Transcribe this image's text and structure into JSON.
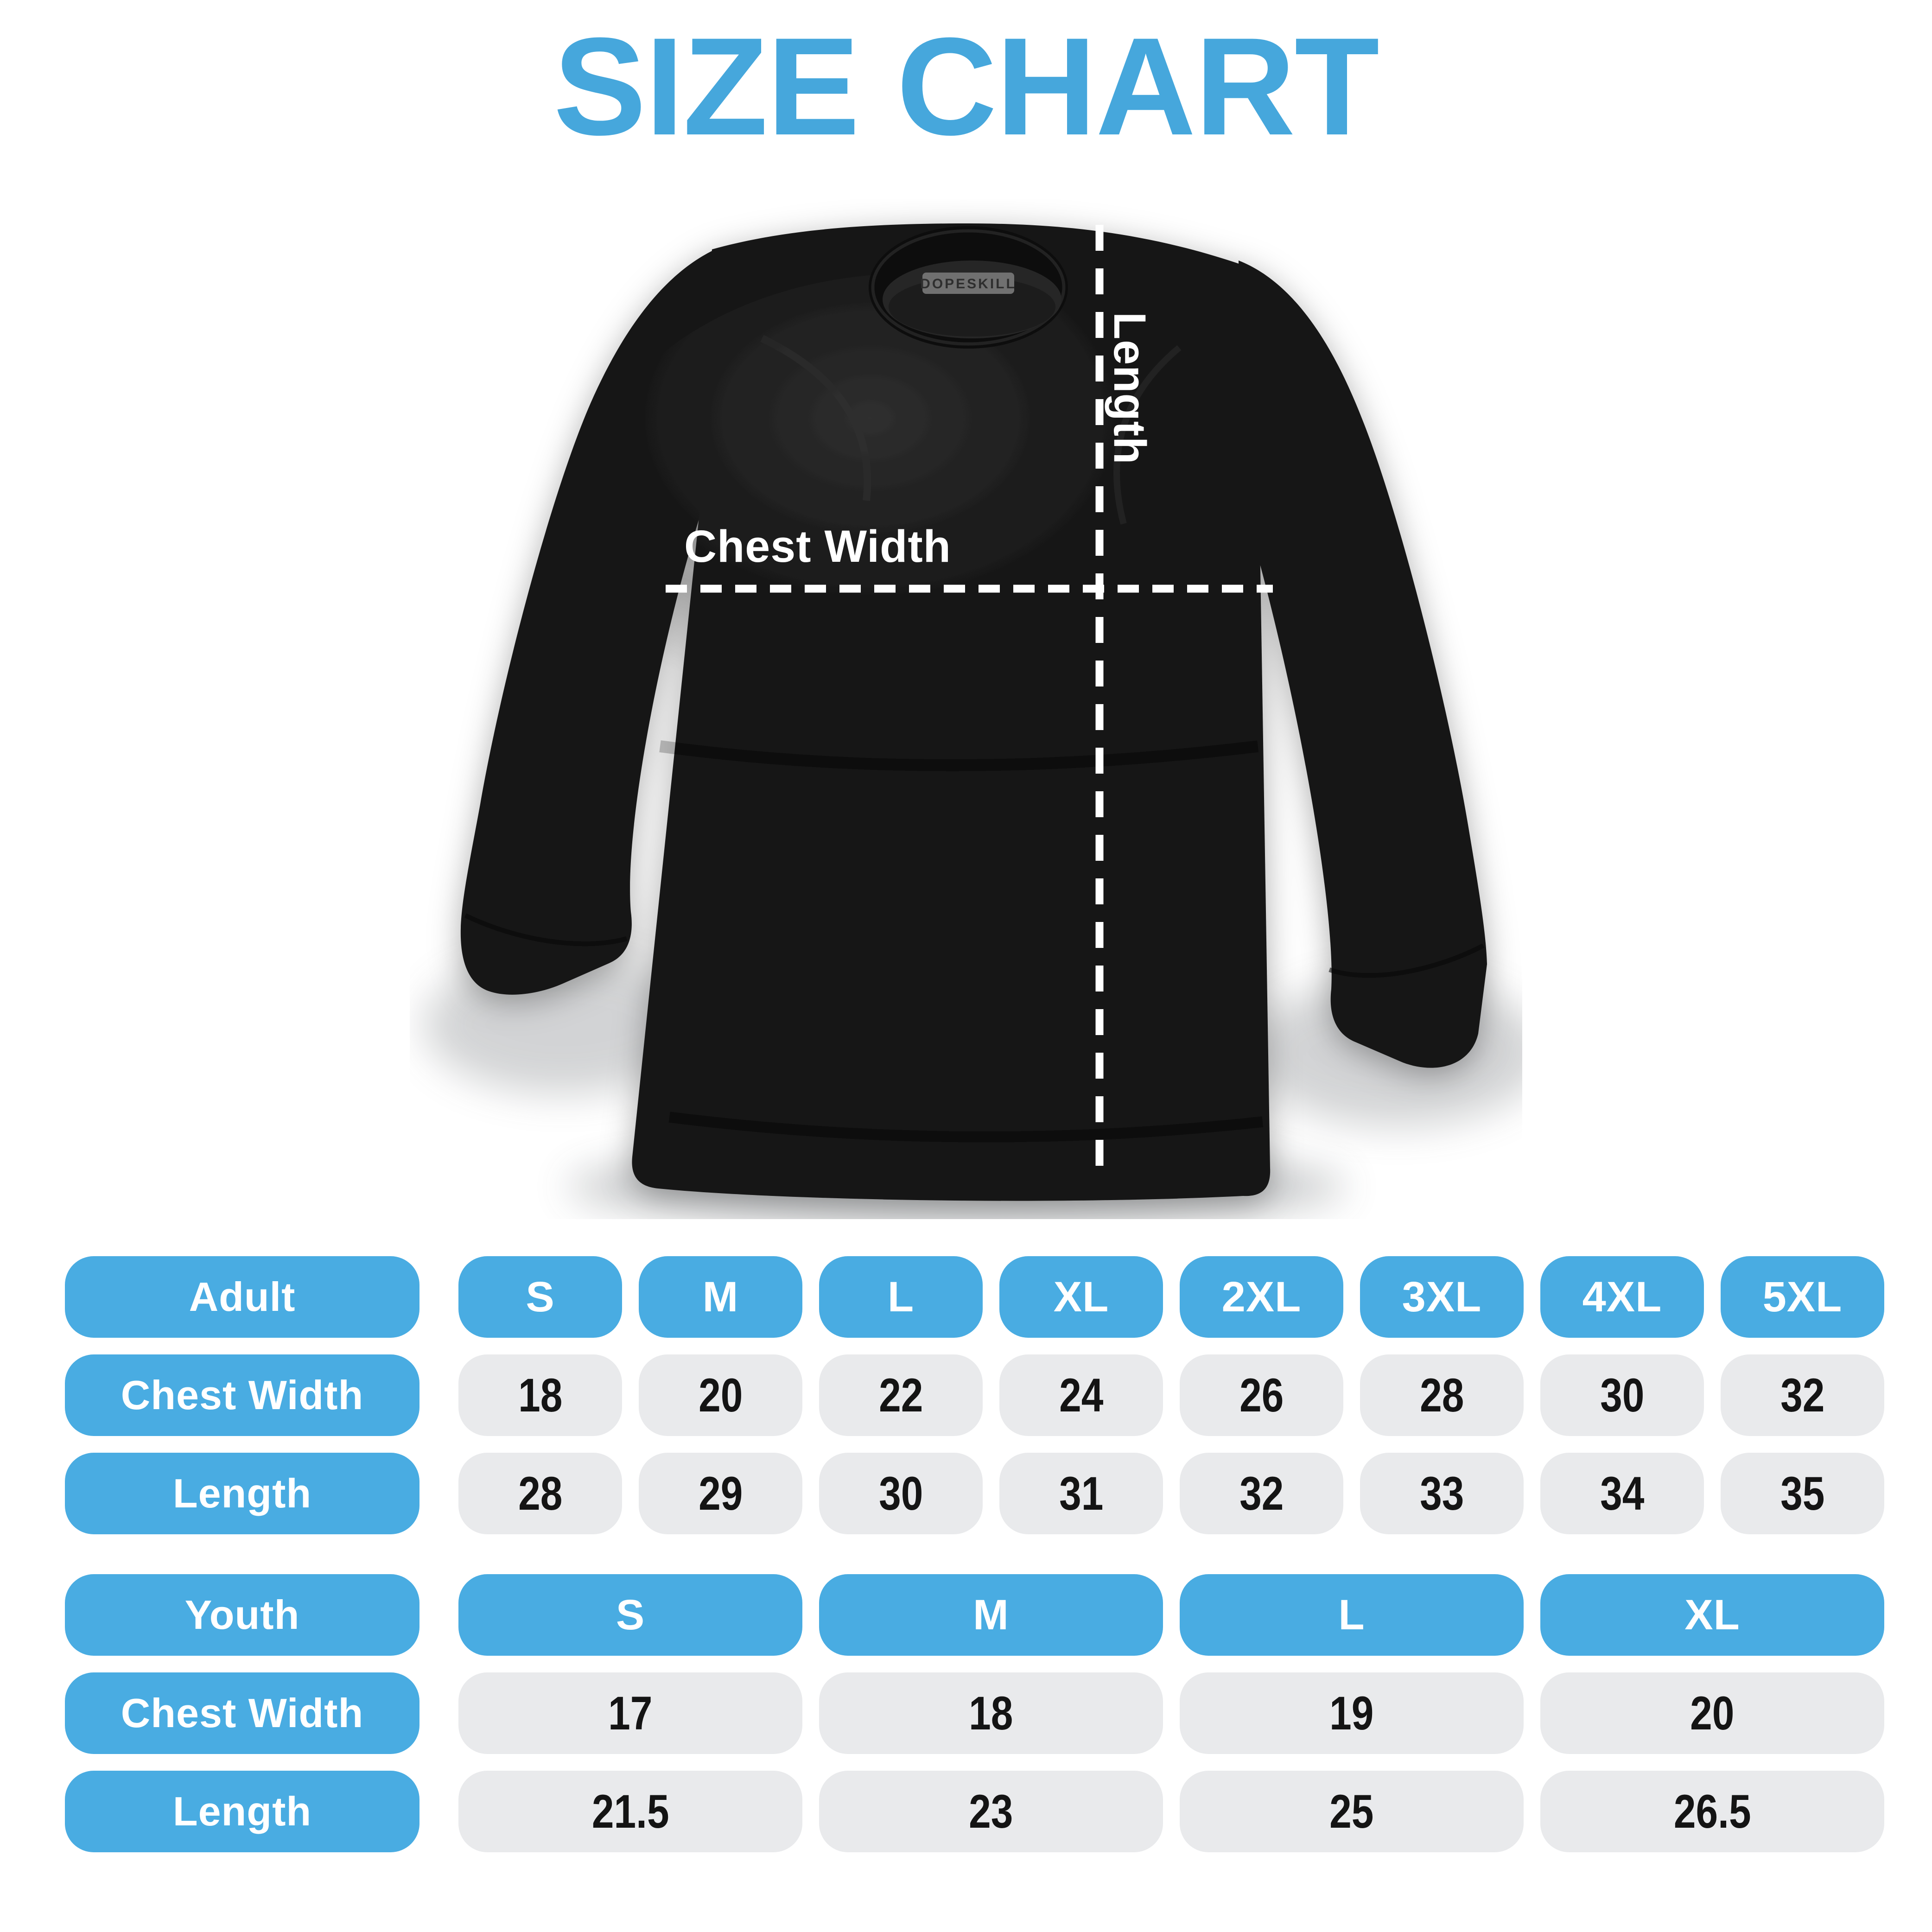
{
  "title": "SIZE CHART",
  "colors": {
    "title_blue": "#46a7dc",
    "pill_blue": "#49ace2",
    "pill_gray": "#e9eaec",
    "number_ink": "#141414",
    "shirt_black": "#161616"
  },
  "shirt": {
    "brand_tag": "DOPESKILL",
    "chest_width_label": "Chest Width",
    "length_label": "Length"
  },
  "adult_table": {
    "row_label": "Adult",
    "sizes": [
      "S",
      "M",
      "L",
      "XL",
      "2XL",
      "3XL",
      "4XL",
      "5XL"
    ],
    "rows": [
      {
        "label": "Chest Width",
        "values": [
          "18",
          "20",
          "22",
          "24",
          "26",
          "28",
          "30",
          "32"
        ]
      },
      {
        "label": "Length",
        "values": [
          "28",
          "29",
          "30",
          "31",
          "32",
          "33",
          "34",
          "35"
        ]
      }
    ]
  },
  "youth_table": {
    "row_label": "Youth",
    "sizes": [
      "S",
      "M",
      "L",
      "XL"
    ],
    "rows": [
      {
        "label": "Chest Width",
        "values": [
          "17",
          "18",
          "19",
          "20"
        ]
      },
      {
        "label": "Length",
        "values": [
          "21.5",
          "23",
          "25",
          "26.5"
        ]
      }
    ]
  }
}
